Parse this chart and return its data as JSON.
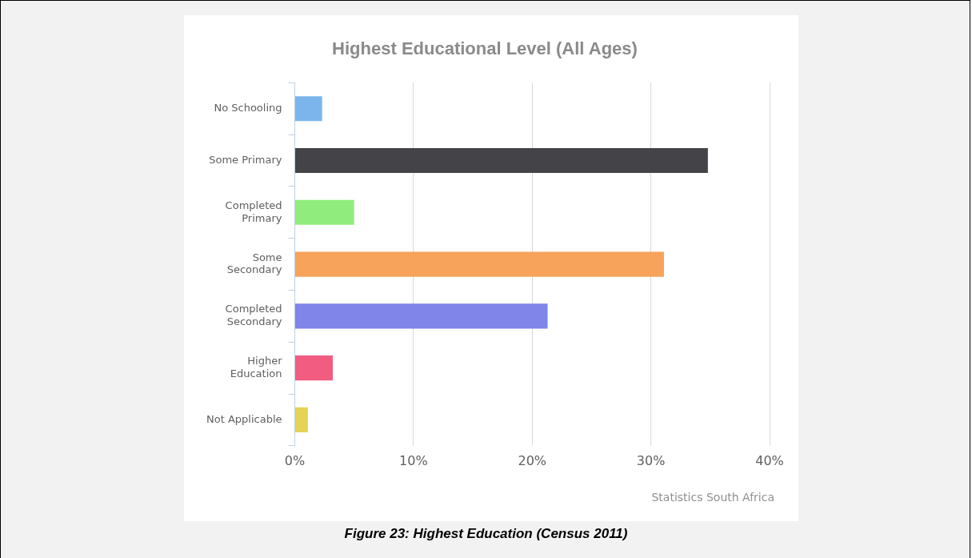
{
  "chart_data": {
    "type": "bar",
    "orientation": "horizontal",
    "title": "Highest Educational Level (All Ages)",
    "categories": [
      "No Schooling",
      "Some Primary",
      "Completed Primary",
      "Some Secondary",
      "Completed Secondary",
      "Higher Education",
      "Not Applicable"
    ],
    "values": [
      2.3,
      34.8,
      5.0,
      31.1,
      21.3,
      3.2,
      1.1
    ],
    "colors": [
      "#7cb5ec",
      "#434348",
      "#90ed7d",
      "#f7a35c",
      "#8085e9",
      "#f15c80",
      "#e4d354"
    ],
    "xlim": [
      0,
      40
    ],
    "xticks": [
      {
        "value": 0,
        "label": "0%"
      },
      {
        "value": 10,
        "label": "10%"
      },
      {
        "value": 20,
        "label": "20%"
      },
      {
        "value": 30,
        "label": "30%"
      },
      {
        "value": 40,
        "label": "40%"
      }
    ],
    "grid": "x",
    "legend": false,
    "annotations": [
      "Statistics South Africa",
      "Figure 23: Highest Education (Census 2011)"
    ]
  }
}
